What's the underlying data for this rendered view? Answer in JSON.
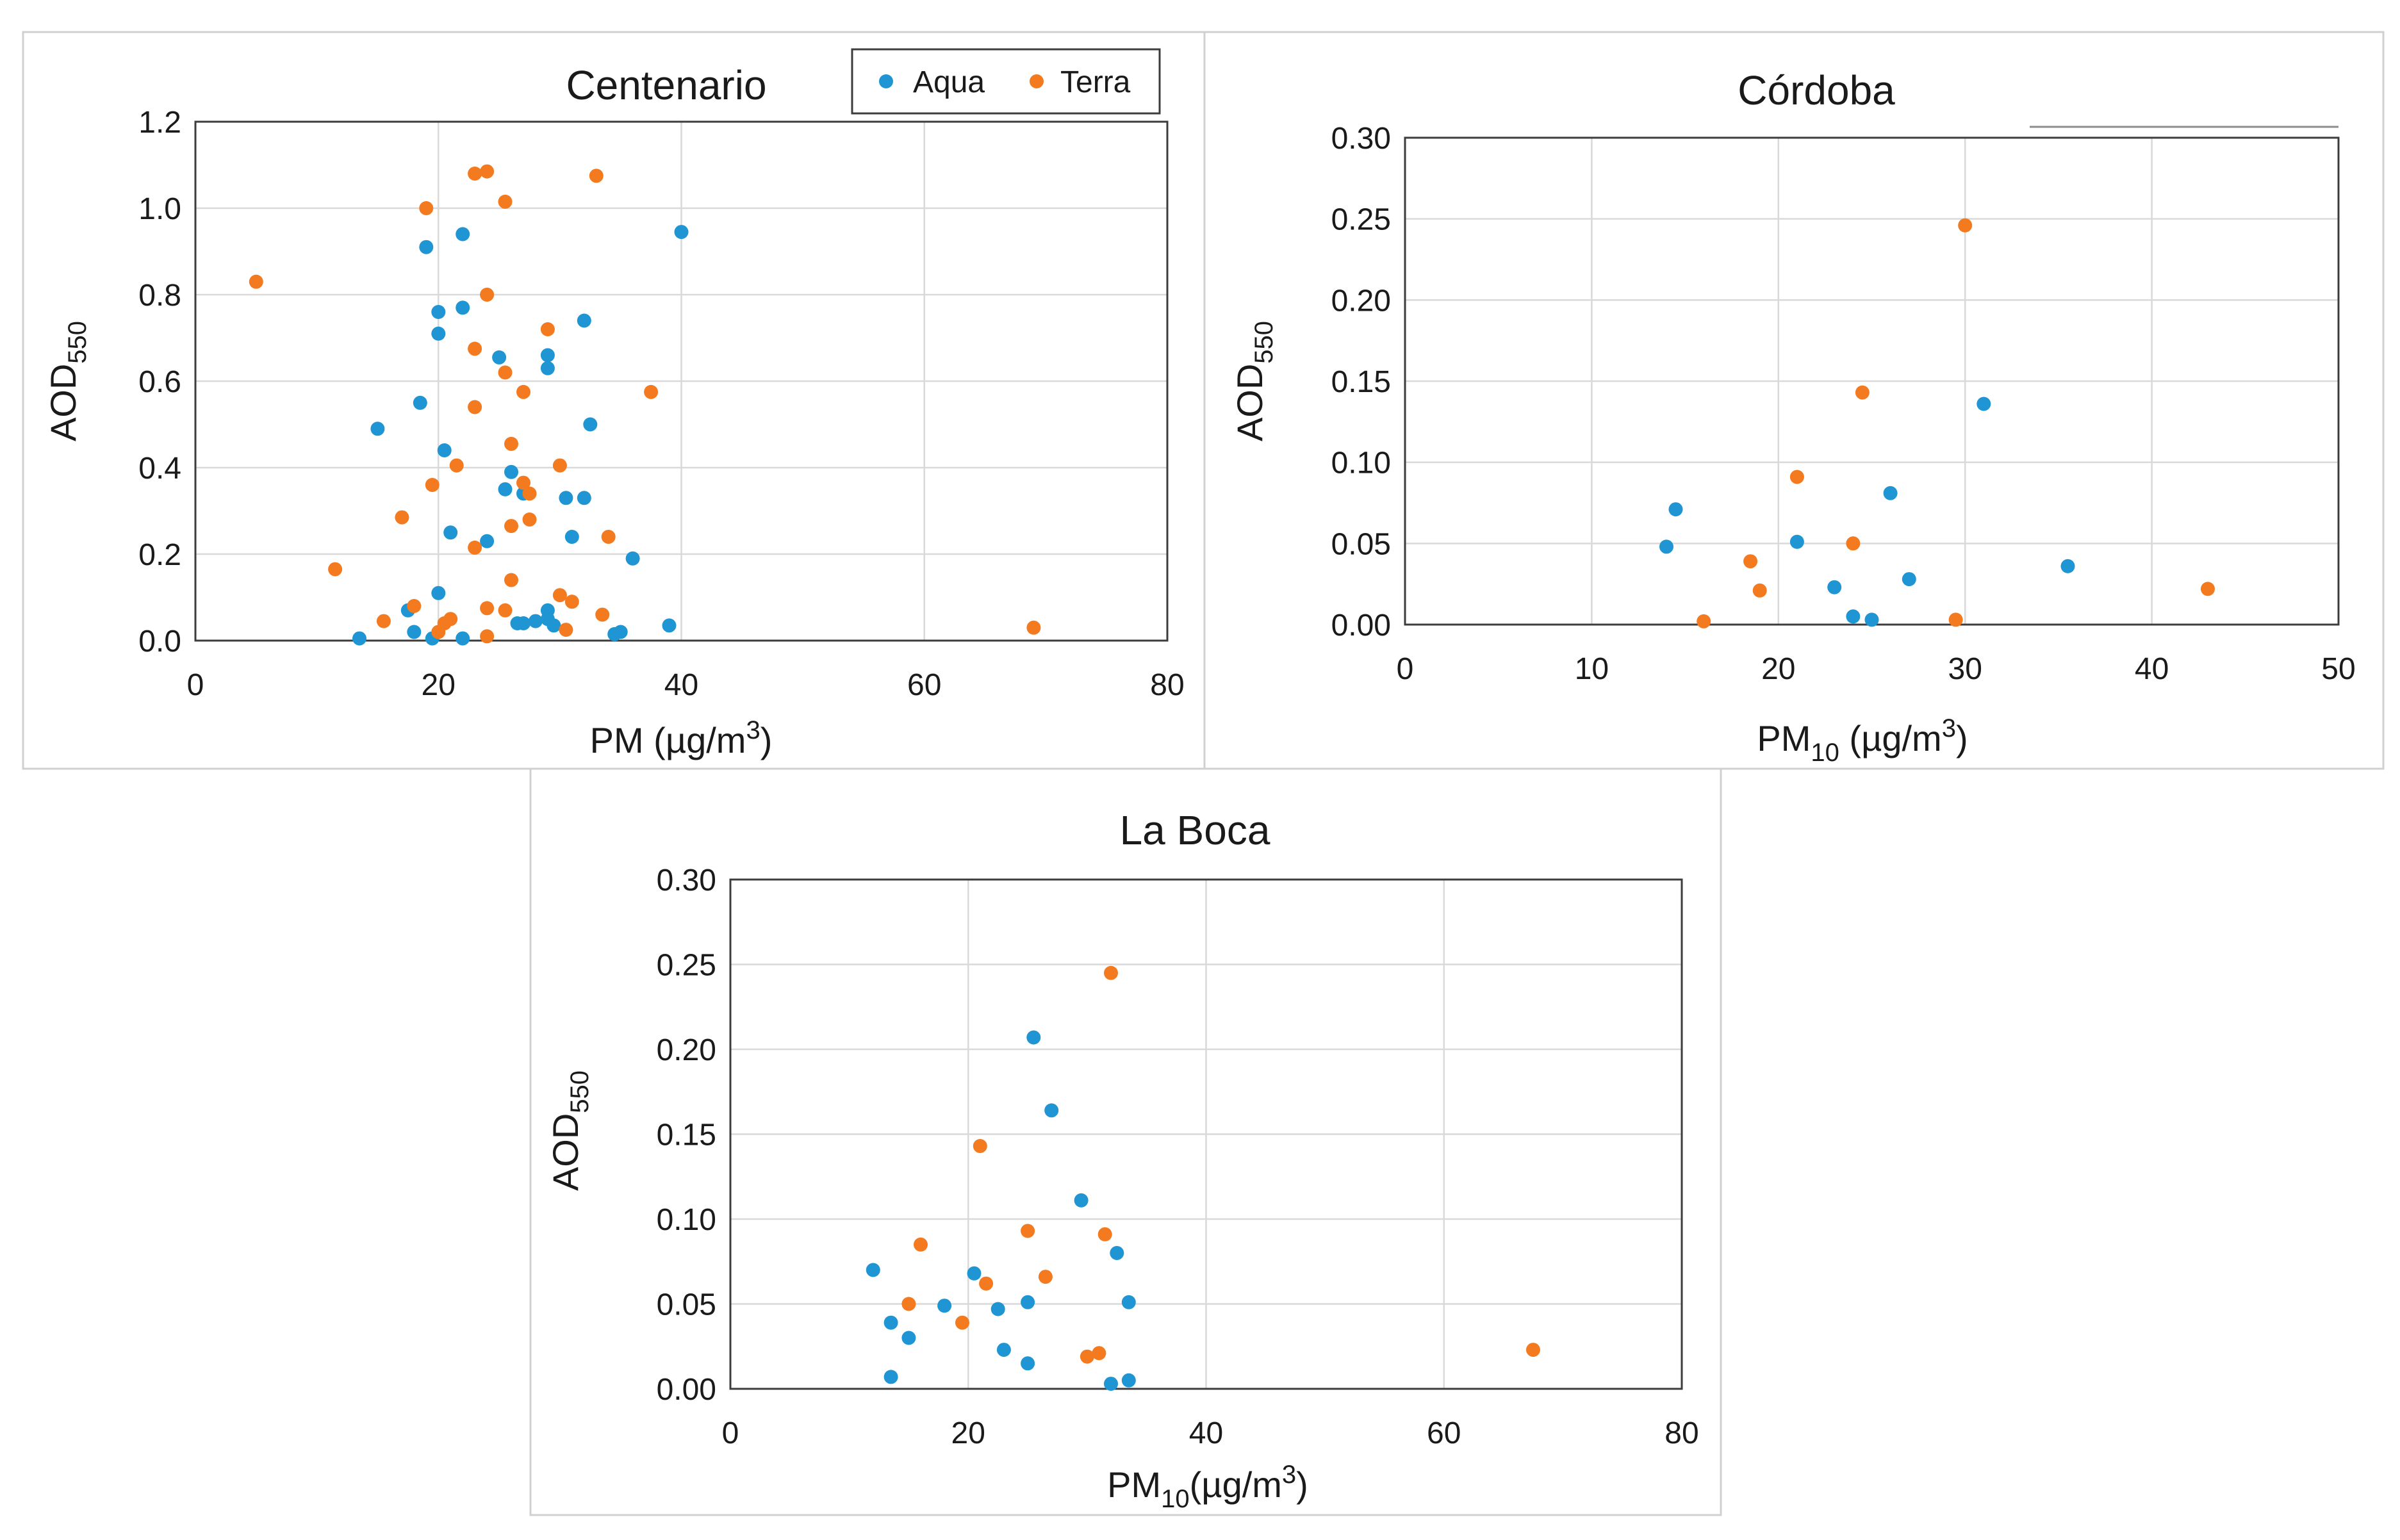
{
  "colors": {
    "aqua": "#1f95d3",
    "terra": "#f47a20"
  },
  "chart_data": [
    {
      "type": "scatter",
      "title": "Centenario",
      "xlabel": {
        "main": "PM (µg/m",
        "sup": "3",
        "end": ")"
      },
      "ylabel": {
        "main": "AOD",
        "sub": "550"
      },
      "xlim": [
        0,
        80
      ],
      "ylim": [
        0,
        1.2
      ],
      "xticks": [
        "0",
        "20",
        "40",
        "60",
        "80"
      ],
      "yticks": [
        "0.0",
        "0.2",
        "0.4",
        "0.6",
        "0.8",
        "1.0",
        "1.2"
      ],
      "legend": {
        "position": "top-right",
        "entries": [
          "Aqua",
          "Terra"
        ]
      },
      "series": [
        {
          "name": "Aqua",
          "color": "#1f95d3",
          "points": [
            [
              13.5,
              0.005
            ],
            [
              15,
              0.49
            ],
            [
              17.5,
              0.07
            ],
            [
              18,
              0.02
            ],
            [
              18.5,
              0.55
            ],
            [
              19,
              0.91
            ],
            [
              19.5,
              0.005
            ],
            [
              20,
              0.11
            ],
            [
              20,
              0.71
            ],
            [
              20,
              0.76
            ],
            [
              20.5,
              0.44
            ],
            [
              21,
              0.25
            ],
            [
              22,
              0.94
            ],
            [
              22,
              0.77
            ],
            [
              22,
              0.005
            ],
            [
              24,
              0.23
            ],
            [
              25,
              0.655
            ],
            [
              25.5,
              0.35
            ],
            [
              26,
              0.39
            ],
            [
              26.5,
              0.04
            ],
            [
              27,
              0.34
            ],
            [
              27,
              0.04
            ],
            [
              28,
              0.045
            ],
            [
              29,
              0.63
            ],
            [
              29,
              0.07
            ],
            [
              29,
              0.05
            ],
            [
              29,
              0.66
            ],
            [
              29.5,
              0.035
            ],
            [
              30.5,
              0.33
            ],
            [
              31,
              0.24
            ],
            [
              32,
              0.33
            ],
            [
              32,
              0.74
            ],
            [
              32.5,
              0.5
            ],
            [
              34.5,
              0.015
            ],
            [
              35,
              0.02
            ],
            [
              36,
              0.19
            ],
            [
              39,
              0.035
            ],
            [
              40,
              0.945
            ]
          ]
        },
        {
          "name": "Terra",
          "color": "#f47a20",
          "points": [
            [
              5,
              0.83
            ],
            [
              11.5,
              0.165
            ],
            [
              15.5,
              0.045
            ],
            [
              17,
              0.285
            ],
            [
              18,
              0.08
            ],
            [
              19,
              1.0
            ],
            [
              19.5,
              0.36
            ],
            [
              20,
              0.02
            ],
            [
              20.5,
              0.04
            ],
            [
              21,
              0.05
            ],
            [
              21.5,
              0.405
            ],
            [
              23,
              1.08
            ],
            [
              23,
              0.675
            ],
            [
              23,
              0.54
            ],
            [
              23,
              0.215
            ],
            [
              24,
              1.085
            ],
            [
              24,
              0.8
            ],
            [
              24,
              0.075
            ],
            [
              24,
              0.01
            ],
            [
              25.5,
              1.015
            ],
            [
              25.5,
              0.62
            ],
            [
              25.5,
              0.07
            ],
            [
              26,
              0.265
            ],
            [
              26,
              0.14
            ],
            [
              26,
              0.455
            ],
            [
              27,
              0.575
            ],
            [
              27,
              0.365
            ],
            [
              27.5,
              0.34
            ],
            [
              27.5,
              0.28
            ],
            [
              29,
              0.72
            ],
            [
              30,
              0.405
            ],
            [
              30,
              0.105
            ],
            [
              30.5,
              0.025
            ],
            [
              31,
              0.09
            ],
            [
              33,
              1.075
            ],
            [
              33.5,
              0.06
            ],
            [
              34,
              0.24
            ],
            [
              37.5,
              0.575
            ],
            [
              69,
              0.03
            ]
          ]
        }
      ]
    },
    {
      "type": "scatter",
      "title": "Córdoba",
      "xlabel": {
        "main": "PM",
        "sub": "10",
        "tail": " (µg/m",
        "sup": "3",
        "end": ")"
      },
      "ylabel": {
        "main": "AOD",
        "sub": "550"
      },
      "xlim": [
        0,
        50
      ],
      "ylim": [
        0,
        0.3
      ],
      "xticks": [
        "0",
        "10",
        "20",
        "30",
        "40",
        "50"
      ],
      "yticks": [
        "0.00",
        "0.05",
        "0.10",
        "0.15",
        "0.20",
        "0.25",
        "0.30"
      ],
      "series": [
        {
          "name": "Aqua",
          "color": "#1f95d3",
          "points": [
            [
              14,
              0.048
            ],
            [
              14.5,
              0.071
            ],
            [
              21,
              0.051
            ],
            [
              23,
              0.023
            ],
            [
              24,
              0.005
            ],
            [
              25,
              0.003
            ],
            [
              26,
              0.081
            ],
            [
              27,
              0.028
            ],
            [
              31,
              0.136
            ],
            [
              35.5,
              0.036
            ]
          ]
        },
        {
          "name": "Terra",
          "color": "#f47a20",
          "points": [
            [
              16,
              0.002
            ],
            [
              18.5,
              0.039
            ],
            [
              19,
              0.021
            ],
            [
              21,
              0.091
            ],
            [
              24,
              0.05
            ],
            [
              24.5,
              0.143
            ],
            [
              29.5,
              0.003
            ],
            [
              30,
              0.246
            ],
            [
              43,
              0.022
            ]
          ]
        }
      ]
    },
    {
      "type": "scatter",
      "title": "La Boca",
      "xlabel": {
        "main": "PM",
        "sub": "10",
        "tail": "(µg/m",
        "sup": "3",
        "end": ")"
      },
      "ylabel": {
        "main": "AOD",
        "sub": "550"
      },
      "xlim": [
        0,
        80
      ],
      "ylim": [
        0,
        0.3
      ],
      "xticks": [
        "0",
        "20",
        "40",
        "60",
        "80"
      ],
      "yticks": [
        "0.00",
        "0.05",
        "0.10",
        "0.15",
        "0.20",
        "0.25",
        "0.30"
      ],
      "series": [
        {
          "name": "Aqua",
          "color": "#1f95d3",
          "points": [
            [
              12,
              0.07
            ],
            [
              13.5,
              0.007
            ],
            [
              13.5,
              0.039
            ],
            [
              15,
              0.03
            ],
            [
              18,
              0.049
            ],
            [
              20.5,
              0.068
            ],
            [
              22.5,
              0.047
            ],
            [
              23,
              0.023
            ],
            [
              25,
              0.015
            ],
            [
              25,
              0.051
            ],
            [
              25.5,
              0.207
            ],
            [
              27,
              0.164
            ],
            [
              29.5,
              0.111
            ],
            [
              32,
              0.003
            ],
            [
              32.5,
              0.08
            ],
            [
              33.5,
              0.005
            ],
            [
              33.5,
              0.051
            ]
          ]
        },
        {
          "name": "Terra",
          "color": "#f47a20",
          "points": [
            [
              15,
              0.05
            ],
            [
              16,
              0.085
            ],
            [
              19.5,
              0.039
            ],
            [
              21,
              0.143
            ],
            [
              21.5,
              0.062
            ],
            [
              25,
              0.093
            ],
            [
              26.5,
              0.066
            ],
            [
              30,
              0.019
            ],
            [
              31,
              0.021
            ],
            [
              31.5,
              0.091
            ],
            [
              32,
              0.245
            ],
            [
              67.5,
              0.023
            ]
          ]
        }
      ]
    }
  ]
}
